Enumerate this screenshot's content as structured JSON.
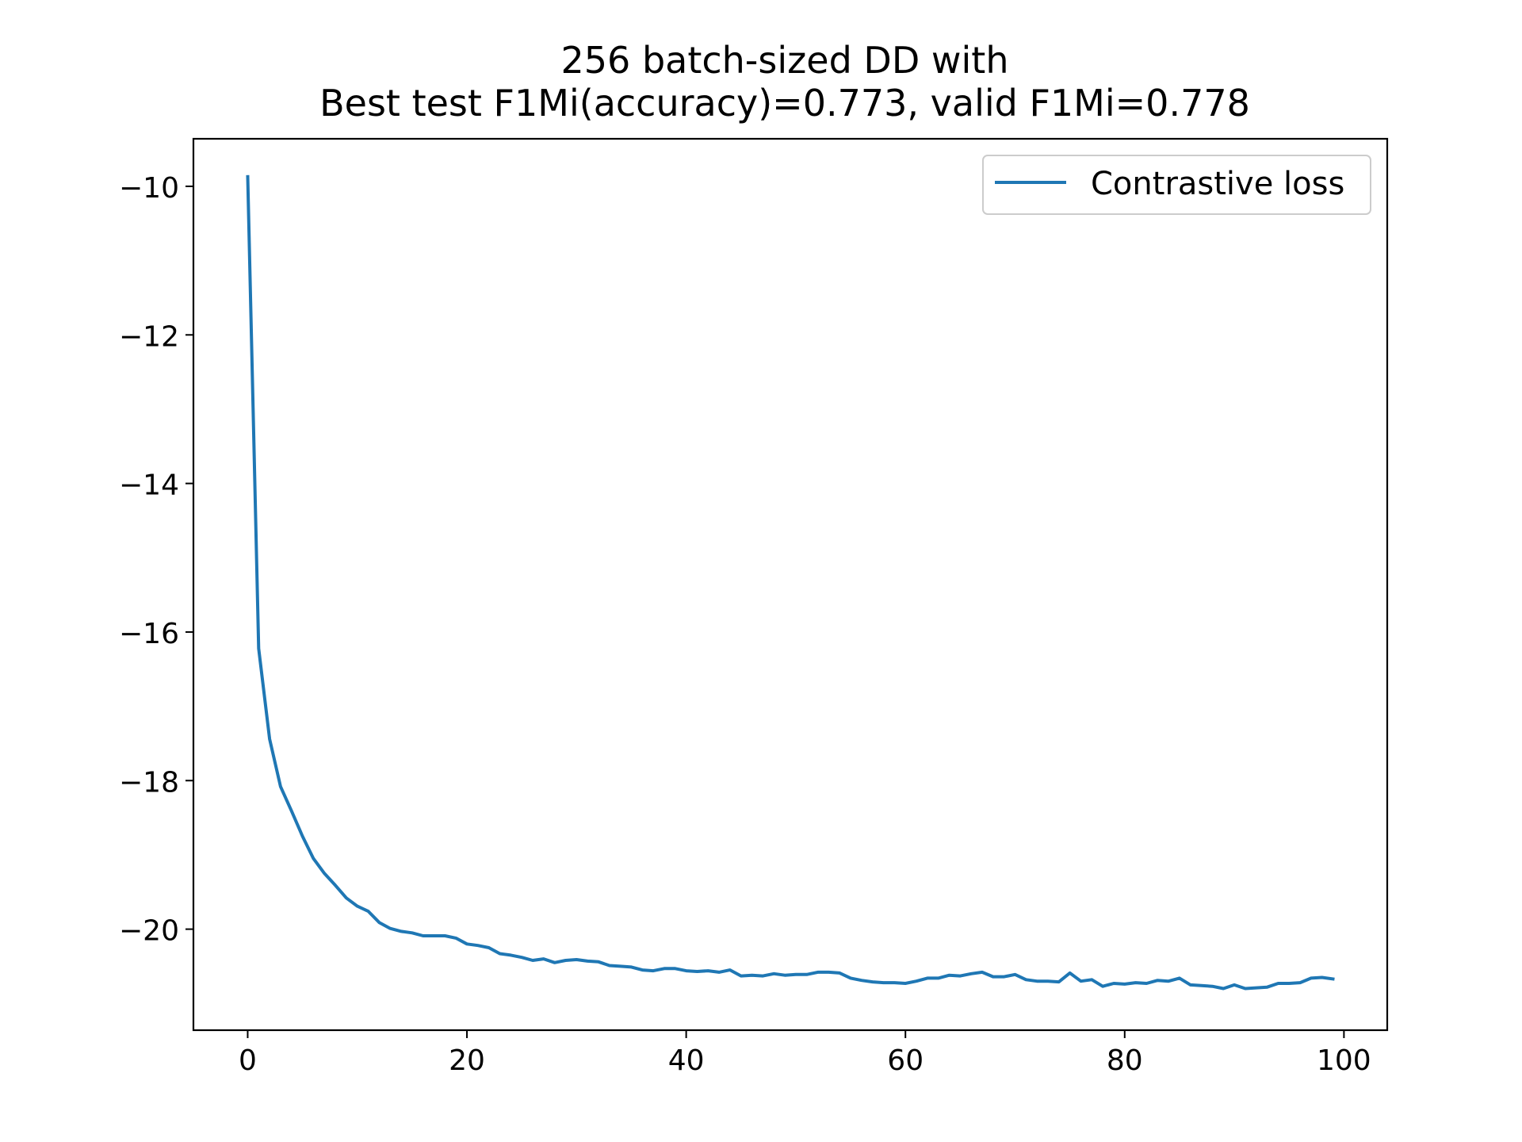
{
  "chart_data": {
    "type": "line",
    "title": "256 batch-sized DD with",
    "subtitle": "Best test F1Mi(accuracy)=0.773, valid F1Mi=0.778",
    "xlabel": "",
    "ylabel": "",
    "xlim": [
      -4.95,
      103.95
    ],
    "ylim": [
      -21.36,
      -9.36
    ],
    "x_ticks": [
      0,
      20,
      40,
      60,
      80,
      100
    ],
    "x_tick_labels": [
      "0",
      "20",
      "40",
      "60",
      "80",
      "100"
    ],
    "y_ticks": [
      -10,
      -12,
      -14,
      -16,
      -18,
      -20
    ],
    "y_tick_labels": [
      "−10",
      "−12",
      "−14",
      "−16",
      "−18",
      "−20"
    ],
    "grid": false,
    "legend_position": "upper right",
    "series": [
      {
        "name": "Contrastive loss",
        "color": "#1f77b4",
        "x": [
          0,
          1,
          2,
          3,
          4,
          5,
          6,
          7,
          8,
          9,
          10,
          11,
          12,
          13,
          14,
          15,
          16,
          17,
          18,
          19,
          20,
          21,
          22,
          23,
          24,
          25,
          26,
          27,
          28,
          29,
          30,
          31,
          32,
          33,
          34,
          35,
          36,
          37,
          38,
          39,
          40,
          41,
          42,
          43,
          44,
          45,
          46,
          47,
          48,
          49,
          50,
          51,
          52,
          53,
          54,
          55,
          56,
          57,
          58,
          59,
          60,
          61,
          62,
          63,
          64,
          65,
          66,
          67,
          68,
          69,
          70,
          71,
          72,
          73,
          74,
          75,
          76,
          77,
          78,
          79,
          80,
          81,
          82,
          83,
          84,
          85,
          86,
          87,
          88,
          89,
          90,
          91,
          92,
          93,
          94,
          95,
          96,
          97,
          98,
          99
        ],
        "y": [
          -9.87,
          -16.22,
          -17.44,
          -18.08,
          -18.41,
          -18.75,
          -19.05,
          -19.25,
          -19.41,
          -19.58,
          -19.69,
          -19.76,
          -19.91,
          -19.99,
          -20.03,
          -20.05,
          -20.09,
          -20.09,
          -20.09,
          -20.12,
          -20.2,
          -20.22,
          -20.25,
          -20.33,
          -20.35,
          -20.38,
          -20.42,
          -20.4,
          -20.45,
          -20.42,
          -20.41,
          -20.43,
          -20.44,
          -20.49,
          -20.5,
          -20.51,
          -20.55,
          -20.56,
          -20.53,
          -20.53,
          -20.56,
          -20.57,
          -20.56,
          -20.58,
          -20.55,
          -20.63,
          -20.62,
          -20.63,
          -20.6,
          -20.62,
          -20.61,
          -20.61,
          -20.58,
          -20.58,
          -20.59,
          -20.66,
          -20.69,
          -20.71,
          -20.72,
          -20.72,
          -20.73,
          -20.7,
          -20.66,
          -20.66,
          -20.62,
          -20.63,
          -20.6,
          -20.58,
          -20.64,
          -20.64,
          -20.61,
          -20.68,
          -20.7,
          -20.7,
          -20.71,
          -20.59,
          -20.7,
          -20.68,
          -20.77,
          -20.73,
          -20.74,
          -20.72,
          -20.73,
          -20.69,
          -20.7,
          -20.66,
          -20.75,
          -20.76,
          -20.77,
          -20.8,
          -20.75,
          -20.8,
          -20.79,
          -20.78,
          -20.73,
          -20.73,
          -20.72,
          -20.66,
          -20.65,
          -20.67
        ]
      }
    ]
  }
}
